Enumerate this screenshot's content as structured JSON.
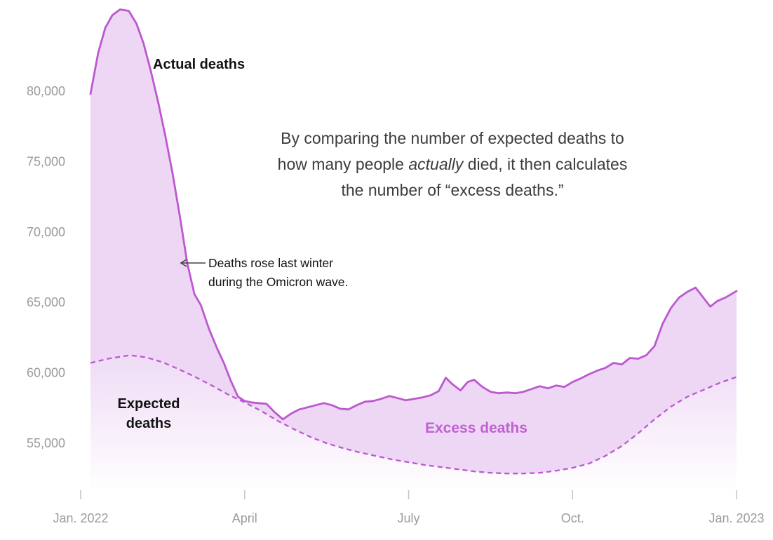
{
  "chart": {
    "actual_label": "Actual deaths",
    "expected_label": "Expected deaths",
    "excess_label": "Excess deaths",
    "explainer_lines": [
      {
        "pre": "By comparing the number of expected deaths to",
        "italic": "",
        "post": ""
      },
      {
        "pre": "how many people ",
        "italic": "actually",
        "post": " died, it then calculates"
      },
      {
        "pre": "the number of “excess deaths.”",
        "italic": "",
        "post": ""
      }
    ],
    "callout_lines": [
      "Deaths rose last winter",
      "during the Omicron wave."
    ]
  },
  "colors": {
    "line": "#bd58d0",
    "fill": "#edd7f4",
    "excess_text": "#c161d2",
    "axis_text": "#9b9b9b",
    "tick": "#c3c3c3",
    "callout_arrow": "#444444"
  },
  "chart_data": {
    "type": "area",
    "title": "",
    "x_unit": "months since Jan 2022",
    "x_range_labels": [
      "Jan. 2022",
      "Jan. 2023"
    ],
    "ylim": [
      52500,
      86000
    ],
    "grid": false,
    "legend_position": "inline-annotations",
    "x_ticks": [
      {
        "pos": 0,
        "label": "Jan. 2022"
      },
      {
        "pos": 3,
        "label": "April"
      },
      {
        "pos": 6,
        "label": "July"
      },
      {
        "pos": 9,
        "label": "Oct."
      },
      {
        "pos": 12,
        "label": "Jan. 2023"
      }
    ],
    "y_ticks": [
      {
        "value": 55000,
        "label": "55,000"
      },
      {
        "value": 60000,
        "label": "60,000"
      },
      {
        "value": 65000,
        "label": "65,000"
      },
      {
        "value": 70000,
        "label": "70,000"
      },
      {
        "value": 75000,
        "label": "75,000"
      },
      {
        "value": 80000,
        "label": "80,000"
      }
    ],
    "series": [
      {
        "name": "Actual deaths",
        "style": "solid",
        "x": [
          0.18,
          0.32,
          0.45,
          0.58,
          0.72,
          0.88,
          1.02,
          1.15,
          1.28,
          1.42,
          1.55,
          1.68,
          1.82,
          1.95,
          2.08,
          2.2,
          2.35,
          2.5,
          2.62,
          2.75,
          2.88,
          3.0,
          3.12,
          3.25,
          3.4,
          3.55,
          3.7,
          3.85,
          4.0,
          4.15,
          4.3,
          4.45,
          4.6,
          4.75,
          4.9,
          5.05,
          5.2,
          5.35,
          5.5,
          5.65,
          5.8,
          5.95,
          6.1,
          6.25,
          6.4,
          6.55,
          6.68,
          6.8,
          6.95,
          7.08,
          7.2,
          7.35,
          7.5,
          7.65,
          7.8,
          7.95,
          8.1,
          8.25,
          8.4,
          8.55,
          8.7,
          8.85,
          9.0,
          9.15,
          9.3,
          9.45,
          9.6,
          9.75,
          9.9,
          10.05,
          10.2,
          10.35,
          10.5,
          10.65,
          10.8,
          10.95,
          11.1,
          11.25,
          11.4,
          11.52,
          11.65,
          11.8,
          12.0
        ],
        "values": [
          79800,
          82700,
          84500,
          85400,
          85800,
          85700,
          84800,
          83400,
          81500,
          79200,
          76800,
          74200,
          71000,
          67800,
          65600,
          64800,
          63100,
          61700,
          60700,
          59400,
          58300,
          58000,
          57900,
          57850,
          57800,
          57200,
          56700,
          57100,
          57400,
          57550,
          57700,
          57850,
          57700,
          57450,
          57400,
          57700,
          57950,
          58000,
          58150,
          58350,
          58200,
          58050,
          58150,
          58250,
          58400,
          58700,
          59650,
          59200,
          58750,
          59350,
          59500,
          59000,
          58650,
          58550,
          58600,
          58550,
          58650,
          58850,
          59050,
          58900,
          59100,
          59000,
          59350,
          59600,
          59900,
          60150,
          60350,
          60700,
          60600,
          61050,
          61000,
          61250,
          61900,
          63500,
          64600,
          65350,
          65750,
          66050,
          65300,
          64700,
          65100,
          65350,
          65800
        ]
      },
      {
        "name": "Expected deaths",
        "style": "dashed",
        "x": [
          0.18,
          0.5,
          0.9,
          1.2,
          1.5,
          1.8,
          2.1,
          2.4,
          2.7,
          3.0,
          3.3,
          3.6,
          3.9,
          4.2,
          4.5,
          4.8,
          5.1,
          5.4,
          5.7,
          6.0,
          6.3,
          6.6,
          6.9,
          7.2,
          7.5,
          7.8,
          8.1,
          8.4,
          8.7,
          9.0,
          9.3,
          9.6,
          9.9,
          10.2,
          10.5,
          10.8,
          11.1,
          11.4,
          11.7,
          12.0
        ],
        "values": [
          60700,
          61000,
          61250,
          61100,
          60750,
          60250,
          59700,
          59100,
          58450,
          57900,
          57300,
          56600,
          56000,
          55450,
          55000,
          54650,
          54350,
          54100,
          53850,
          53650,
          53450,
          53300,
          53150,
          53000,
          52900,
          52850,
          52850,
          52900,
          53050,
          53250,
          53550,
          54100,
          54800,
          55700,
          56700,
          57600,
          58300,
          58800,
          59300,
          59700
        ]
      }
    ]
  }
}
